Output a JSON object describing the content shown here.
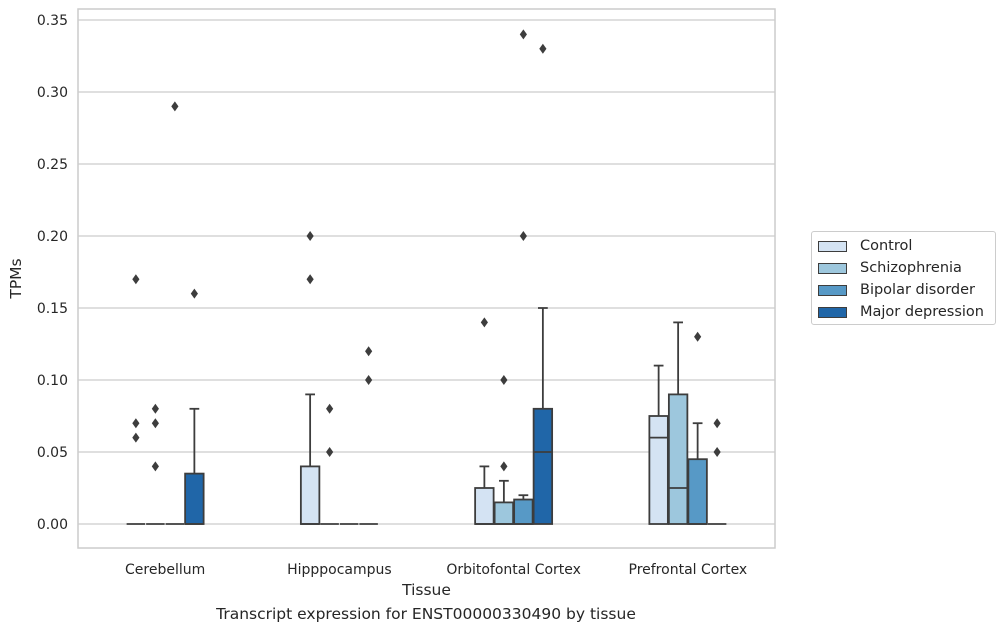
{
  "chart_data": {
    "type": "box",
    "title": "",
    "caption": "Transcript expression for ENST00000330490 by tissue",
    "xlabel": "Tissue",
    "ylabel": "TPMs",
    "ylim": [
      -0.017,
      0.357
    ],
    "yticks": [
      "0.00",
      "0.05",
      "0.10",
      "0.15",
      "0.20",
      "0.25",
      "0.30",
      "0.35"
    ],
    "categories": [
      "Cerebellum",
      "Hipppocampus",
      "Orbitofontal Cortex",
      "Prefrontal Cortex"
    ],
    "grid": "horizontal",
    "legend_position": "outside-right",
    "series": [
      {
        "name": "Control",
        "color": "#d4e3f3",
        "boxes": [
          {
            "q1": 0,
            "median": 0,
            "q3": 0,
            "whislo": 0,
            "whishi": 0,
            "fliers": [
              0.17,
              0.07,
              0.06
            ]
          },
          {
            "q1": 0,
            "median": 0,
            "q3": 0.04,
            "whislo": 0,
            "whishi": 0.09,
            "fliers": [
              0.2,
              0.17
            ]
          },
          {
            "q1": 0,
            "median": 0,
            "q3": 0.025,
            "whislo": 0,
            "whishi": 0.04,
            "fliers": [
              0.14
            ]
          },
          {
            "q1": 0,
            "median": 0.06,
            "q3": 0.075,
            "whislo": 0,
            "whishi": 0.11,
            "fliers": []
          }
        ]
      },
      {
        "name": "Schizophrenia",
        "color": "#9dc7dd",
        "boxes": [
          {
            "q1": 0,
            "median": 0,
            "q3": 0,
            "whislo": 0,
            "whishi": 0,
            "fliers": [
              0.08,
              0.07,
              0.04
            ]
          },
          {
            "q1": 0,
            "median": 0,
            "q3": 0,
            "whislo": 0,
            "whishi": 0,
            "fliers": [
              0.08,
              0.05
            ]
          },
          {
            "q1": 0,
            "median": 0,
            "q3": 0.015,
            "whislo": 0,
            "whishi": 0.03,
            "fliers": [
              0.1,
              0.04
            ]
          },
          {
            "q1": 0,
            "median": 0.025,
            "q3": 0.09,
            "whislo": 0,
            "whishi": 0.14,
            "fliers": []
          }
        ]
      },
      {
        "name": "Bipolar disorder",
        "color": "#5799c6",
        "boxes": [
          {
            "q1": 0,
            "median": 0,
            "q3": 0,
            "whislo": 0,
            "whishi": 0,
            "fliers": [
              0.29
            ]
          },
          {
            "q1": 0,
            "median": 0,
            "q3": 0,
            "whislo": 0,
            "whishi": 0,
            "fliers": []
          },
          {
            "q1": 0,
            "median": 0,
            "q3": 0.017,
            "whislo": 0,
            "whishi": 0.02,
            "fliers": [
              0.34,
              0.2
            ]
          },
          {
            "q1": 0,
            "median": 0,
            "q3": 0.045,
            "whislo": 0,
            "whishi": 0.07,
            "fliers": [
              0.13
            ]
          }
        ]
      },
      {
        "name": "Major depression",
        "color": "#2066a8",
        "boxes": [
          {
            "q1": 0,
            "median": 0,
            "q3": 0.035,
            "whislo": 0,
            "whishi": 0.08,
            "fliers": [
              0.16
            ]
          },
          {
            "q1": 0,
            "median": 0,
            "q3": 0,
            "whislo": 0,
            "whishi": 0,
            "fliers": [
              0.12,
              0.1
            ]
          },
          {
            "q1": 0,
            "median": 0.05,
            "q3": 0.08,
            "whislo": 0,
            "whishi": 0.15,
            "fliers": [
              0.33
            ]
          },
          {
            "q1": 0,
            "median": 0,
            "q3": 0,
            "whislo": 0,
            "whishi": 0,
            "fliers": [
              0.07,
              0.05
            ]
          }
        ]
      }
    ]
  },
  "legend": {
    "items": [
      {
        "label": "Control",
        "color": "#d4e3f3"
      },
      {
        "label": "Schizophrenia",
        "color": "#9dc7dd"
      },
      {
        "label": "Bipolar disorder",
        "color": "#5799c6"
      },
      {
        "label": "Major depression",
        "color": "#2066a8"
      }
    ]
  }
}
